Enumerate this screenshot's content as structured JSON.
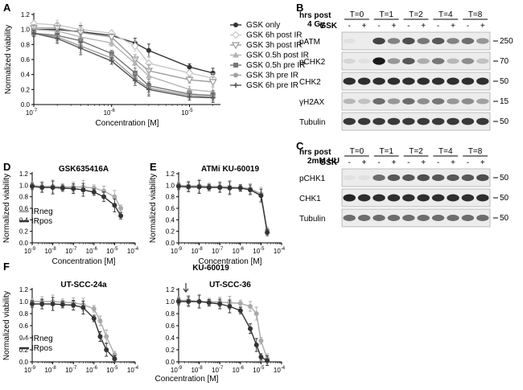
{
  "figure": {
    "panels": {
      "A": "A",
      "B": "B",
      "C": "C",
      "D": "D",
      "E": "E",
      "F": "F"
    }
  },
  "chart_data": [
    {
      "panel": "A",
      "type": "line",
      "ylabel": "Normalized viability",
      "xlabel": "Concentration [M]",
      "xscale": "log",
      "xlim": [
        1e-07,
        2.5e-05
      ],
      "ylim": [
        0,
        1.2
      ],
      "yticks": [
        "0.0",
        "0.2",
        "0.4",
        "0.6",
        "0.8",
        "1.0",
        "1.2"
      ],
      "xticks": [
        {
          "b": "10",
          "e": "-7",
          "v": 1e-07
        },
        {
          "b": "10",
          "e": "-6",
          "v": 1e-06
        },
        {
          "b": "10",
          "e": "-5",
          "v": 1e-05
        }
      ],
      "x": [
        1e-07,
        2e-07,
        4e-07,
        1e-06,
        2e-06,
        3e-06,
        1e-05,
        2e-05
      ],
      "series": [
        {
          "name": "GSK only",
          "color": "#333333",
          "marker": "circle",
          "values": [
            1.0,
            1.0,
            0.97,
            0.92,
            0.82,
            0.72,
            0.5,
            0.42
          ]
        },
        {
          "name": "GSK 6h post IR",
          "color": "#c8c8c8",
          "marker": "diamond",
          "values": [
            1.08,
            1.06,
            1.0,
            0.95,
            0.78,
            0.55,
            0.42,
            0.35
          ]
        },
        {
          "name": "GSK 3h post IR",
          "color": "#9a9a9a",
          "marker": "triangle-down",
          "values": [
            1.02,
            1.02,
            0.96,
            0.9,
            0.6,
            0.45,
            0.33,
            0.3
          ]
        },
        {
          "name": "GSK 0.5h post IR",
          "color": "#b4b4b4",
          "marker": "triangle-up",
          "values": [
            1.0,
            0.98,
            0.9,
            0.82,
            0.55,
            0.38,
            0.2,
            0.17
          ]
        },
        {
          "name": "GSK 0.5h pre IR",
          "color": "#777777",
          "marker": "square",
          "values": [
            0.95,
            0.92,
            0.85,
            0.68,
            0.42,
            0.25,
            0.14,
            0.12
          ]
        },
        {
          "name": "GSK 3h pre IR",
          "color": "#a0a0a0",
          "marker": "circle",
          "values": [
            0.95,
            0.9,
            0.78,
            0.62,
            0.35,
            0.22,
            0.12,
            0.1
          ]
        },
        {
          "name": "GSK 6h pre IR",
          "color": "#555555",
          "marker": "plus",
          "values": [
            0.95,
            0.88,
            0.75,
            0.58,
            0.32,
            0.2,
            0.1,
            0.09
          ]
        }
      ]
    },
    {
      "panel": "D",
      "type": "line",
      "title": "GSK635416A",
      "ylabel": "Normalized viability",
      "xlabel": "Concentration [M]",
      "xscale": "log",
      "xlim": [
        1e-09,
        0.0001
      ],
      "ylim": [
        0,
        1.2
      ],
      "yticks": [
        "0.0",
        "0.2",
        "0.4",
        "0.6",
        "0.8",
        "1.0",
        "1.2"
      ],
      "xticks": [
        {
          "b": "10",
          "e": "-9",
          "v": 1e-09
        },
        {
          "b": "10",
          "e": "-8",
          "v": 1e-08
        },
        {
          "b": "10",
          "e": "-7",
          "v": 1e-07
        },
        {
          "b": "10",
          "e": "-6",
          "v": 1e-06
        },
        {
          "b": "10",
          "e": "-5",
          "v": 1e-05
        },
        {
          "b": "10",
          "e": "-4",
          "v": 0.0001
        }
      ],
      "x": [
        1e-09,
        3e-09,
        1e-08,
        3e-08,
        1e-07,
        3e-07,
        1e-06,
        3e-06,
        1e-05,
        2e-05
      ],
      "series": [
        {
          "name": "IRneg",
          "color": "#aaaaaa",
          "values": [
            1.0,
            0.98,
            0.98,
            0.97,
            0.97,
            0.97,
            0.95,
            0.9,
            0.8,
            0.6
          ]
        },
        {
          "name": "IRpos",
          "color": "#333333",
          "values": [
            0.98,
            0.96,
            0.96,
            0.95,
            0.94,
            0.92,
            0.88,
            0.8,
            0.65,
            0.47
          ]
        }
      ]
    },
    {
      "panel": "E",
      "type": "line",
      "title": "ATMi KU-60019",
      "ylabel": "Normalized viability",
      "xlabel": "Concentration [M]",
      "xscale": "log",
      "xlim": [
        1e-09,
        0.0001
      ],
      "ylim": [
        0,
        1.2
      ],
      "yticks": [
        "0.0",
        "0.2",
        "0.4",
        "0.6",
        "0.8",
        "1.0",
        "1.2"
      ],
      "xticks": [
        {
          "b": "10",
          "e": "-9",
          "v": 1e-09
        },
        {
          "b": "10",
          "e": "-8",
          "v": 1e-08
        },
        {
          "b": "10",
          "e": "-7",
          "v": 1e-07
        },
        {
          "b": "10",
          "e": "-6",
          "v": 1e-06
        },
        {
          "b": "10",
          "e": "-5",
          "v": 1e-05
        },
        {
          "b": "10",
          "e": "-4",
          "v": 0.0001
        }
      ],
      "x": [
        1e-09,
        3e-09,
        1e-08,
        3e-08,
        1e-07,
        3e-07,
        1e-06,
        3e-06,
        1e-05,
        2e-05
      ],
      "series": [
        {
          "name": "IRneg",
          "color": "#aaaaaa",
          "values": [
            1.0,
            0.99,
            0.99,
            0.98,
            0.98,
            0.97,
            0.96,
            0.94,
            0.85,
            0.22
          ]
        },
        {
          "name": "IRpos",
          "color": "#333333",
          "values": [
            0.98,
            0.97,
            0.97,
            0.96,
            0.96,
            0.95,
            0.95,
            0.92,
            0.82,
            0.18
          ]
        }
      ]
    },
    {
      "panel": "F",
      "type": "line",
      "title": "UT-SCC-24a",
      "ylabel": "Normalized viability",
      "xlabel": "",
      "xscale": "log",
      "xlim": [
        1e-09,
        0.0001
      ],
      "ylim": [
        0,
        1.2
      ],
      "yticks": [
        "0.0",
        "0.2",
        "0.4",
        "0.6",
        "0.8",
        "1.0",
        "1.2"
      ],
      "xticks": [
        {
          "b": "10",
          "e": "-9",
          "v": 1e-09
        },
        {
          "b": "10",
          "e": "-8",
          "v": 1e-08
        },
        {
          "b": "10",
          "e": "-7",
          "v": 1e-07
        },
        {
          "b": "10",
          "e": "-6",
          "v": 1e-06
        },
        {
          "b": "10",
          "e": "-5",
          "v": 1e-05
        },
        {
          "b": "10",
          "e": "-4",
          "v": 0.0001
        }
      ],
      "x": [
        1e-09,
        3e-09,
        1e-08,
        3e-08,
        1e-07,
        3e-07,
        1e-06,
        2e-06,
        4e-06,
        1e-05
      ],
      "series": [
        {
          "name": "IRneg",
          "color": "#aaaaaa",
          "values": [
            1.0,
            1.0,
            1.0,
            0.99,
            0.98,
            0.95,
            0.88,
            0.68,
            0.42,
            0.12
          ]
        },
        {
          "name": "IRpos",
          "color": "#333333",
          "values": [
            0.96,
            0.96,
            0.96,
            0.95,
            0.94,
            0.9,
            0.72,
            0.42,
            0.2,
            0.05
          ]
        }
      ]
    },
    {
      "panel": "F2",
      "type": "line",
      "title": "UT-SCC-36",
      "ylabel": "",
      "xlabel": "",
      "xscale": "log",
      "xlim": [
        1e-09,
        0.0001
      ],
      "ylim": [
        0,
        1.2
      ],
      "yticks": [
        "0.0",
        "0.2",
        "0.4",
        "0.6",
        "0.8",
        "1.0",
        "1.2"
      ],
      "xticks": [
        {
          "b": "10",
          "e": "-9",
          "v": 1e-09
        },
        {
          "b": "10",
          "e": "-8",
          "v": 1e-08
        },
        {
          "b": "10",
          "e": "-7",
          "v": 1e-07
        },
        {
          "b": "10",
          "e": "-6",
          "v": 1e-06
        },
        {
          "b": "10",
          "e": "-5",
          "v": 1e-05
        },
        {
          "b": "10",
          "e": "-4",
          "v": 0.0001
        }
      ],
      "x": [
        1e-09,
        3e-09,
        1e-08,
        3e-08,
        1e-07,
        3e-07,
        1e-06,
        3e-06,
        6e-06,
        1e-05,
        2e-05
      ],
      "series": [
        {
          "name": "IRneg",
          "color": "#aaaaaa",
          "values": [
            1.02,
            1.02,
            1.0,
            1.0,
            0.99,
            0.98,
            0.97,
            0.92,
            0.8,
            0.35,
            0.05
          ]
        },
        {
          "name": "IRpos",
          "color": "#333333",
          "values": [
            1.0,
            1.0,
            1.0,
            0.98,
            0.96,
            0.92,
            0.85,
            0.55,
            0.28,
            0.08,
            0.02
          ]
        }
      ]
    }
  ],
  "panel_F": {
    "heading": "KU-60019",
    "xlabel": "Concentration [M]"
  },
  "blot_B": {
    "header1": "hrs post",
    "header2": "4 Gy",
    "timepoints": [
      "T=0",
      "T=1",
      "T=2",
      "T=4",
      "T=8"
    ],
    "gsk_label": "GSK",
    "signs": [
      "-",
      "+",
      "-",
      "+",
      "-",
      "+",
      "-",
      "+",
      "-",
      "+"
    ],
    "rows": [
      {
        "label": "pATM",
        "mw": "250"
      },
      {
        "label": "pCHK2",
        "mw": "70"
      },
      {
        "label": "CHK2",
        "mw": "50"
      },
      {
        "label": "γH2AX",
        "mw": "15"
      },
      {
        "label": "Tubulin",
        "mw": "50"
      }
    ]
  },
  "blot_C": {
    "header1": "hrs post",
    "header2": "2mM HU",
    "timepoints": [
      "T=0",
      "T=1",
      "T=2",
      "T=4",
      "T=8"
    ],
    "gsk_label": "GSK",
    "signs": [
      "-",
      "+",
      "-",
      "+",
      "-",
      "+",
      "-",
      "+",
      "-",
      "+"
    ],
    "rows": [
      {
        "label": "pCHK1",
        "mw": "50"
      },
      {
        "label": "CHK1",
        "mw": "50"
      },
      {
        "label": "Tubulin",
        "mw": "50"
      }
    ]
  }
}
